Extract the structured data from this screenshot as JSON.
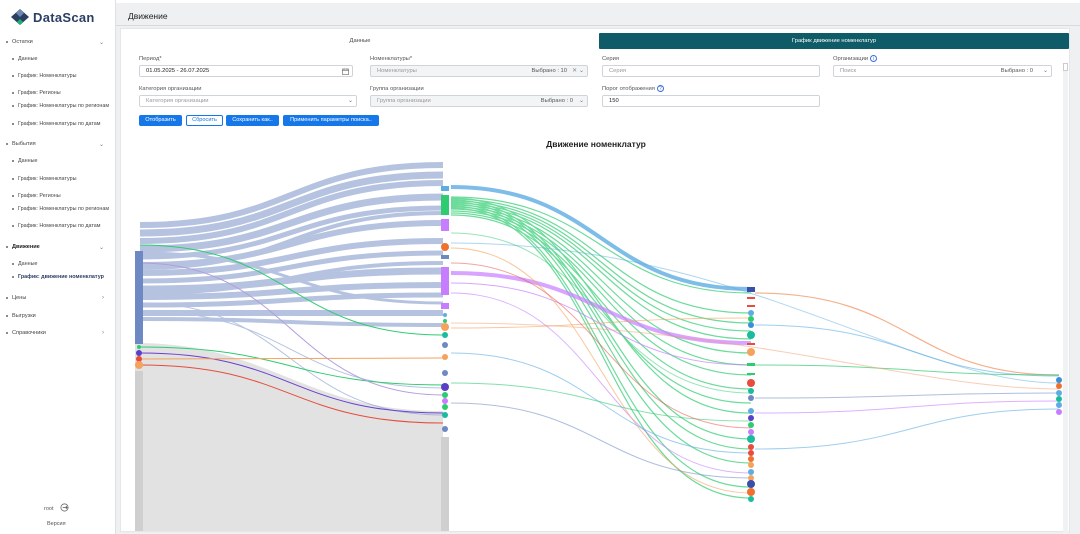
{
  "app": {
    "name_a": "Data",
    "name_b": "Scan"
  },
  "page": {
    "title": "Движение"
  },
  "sidebar": {
    "groups": [
      {
        "label": "Остатки",
        "chevron": "⌄",
        "items": [
          "Данные",
          "График: Номенклатуры",
          "График: Регионы",
          "График: Номенклатуры по регионам",
          "График: Номенклатуры по датам"
        ]
      },
      {
        "label": "Выбытия",
        "chevron": "⌄",
        "items": [
          "Данные",
          "График: Номенклатуры",
          "График: Регионы",
          "График: Номенклатуры по регионам",
          "График: Номенклатуры по датам"
        ]
      },
      {
        "label": "Движение",
        "chevron": "⌄",
        "items": [
          "Данные",
          "График: движение номенклатур"
        ]
      },
      {
        "label": "Цены",
        "chevron": "›"
      },
      {
        "label": "Выгрузки",
        "chevron": ""
      },
      {
        "label": "Справочники",
        "chevron": "›"
      }
    ],
    "user": "root",
    "version": "Версия"
  },
  "tabs": {
    "data": "Данные",
    "chart": "График движение номенклатур"
  },
  "filters": {
    "period_label": "Период*",
    "period_value": "01.05.2025 - 26.07.2025",
    "nomen_label": "Номенклатуры*",
    "nomen_placeholder": "Номенклатуры",
    "nomen_count": "Выбрано : 10",
    "series_label": "Серия",
    "series_placeholder": "Серия",
    "org_label": "Организации",
    "org_placeholder": "Поиск",
    "org_count": "Выбрано : 0",
    "orgcat_label": "Категория организации",
    "orgcat_placeholder": "Категория организации",
    "orggroup_label": "Группа организации",
    "orggroup_placeholder": "Группа организации",
    "orggroup_count": "Выбрано : 0",
    "threshold_label": "Порог отображения",
    "threshold_value": "150"
  },
  "buttons": {
    "show": "Отобразить",
    "reset": "Сбросить",
    "save": "Сохранить как..",
    "apply": "Применить параметры поиска.."
  },
  "chart": {
    "title": "Движение номенклатур"
  },
  "icons": {
    "calendar": "calendar-icon",
    "info": "info-icon",
    "logout": "logout-icon",
    "chevron": "chevron-down-icon"
  },
  "colors": {
    "accent": "#0f5c68",
    "primary": "#1677e8",
    "brand": "#2b3f63"
  }
}
